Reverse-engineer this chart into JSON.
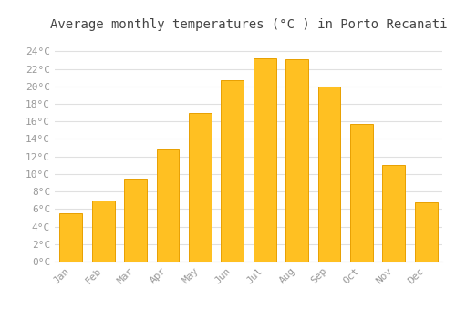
{
  "months": [
    "Jan",
    "Feb",
    "Mar",
    "Apr",
    "May",
    "Jun",
    "Jul",
    "Aug",
    "Sep",
    "Oct",
    "Nov",
    "Dec"
  ],
  "values": [
    5.5,
    7.0,
    9.5,
    12.8,
    17.0,
    20.7,
    23.2,
    23.1,
    20.0,
    15.7,
    11.0,
    6.8
  ],
  "bar_color": "#FFC022",
  "bar_edge_color": "#E8A000",
  "title": "Average monthly temperatures (°C ) in Porto Recanati",
  "title_fontsize": 10,
  "ylabel_ticks": [
    0,
    2,
    4,
    6,
    8,
    10,
    12,
    14,
    16,
    18,
    20,
    22,
    24
  ],
  "ylim": [
    0,
    25.5
  ],
  "background_color": "#ffffff",
  "plot_bg_color": "#ffffff",
  "grid_color": "#e0e0e0",
  "tick_label_color": "#999999",
  "axis_label_fontsize": 8,
  "font_family": "monospace",
  "title_color": "#444444"
}
